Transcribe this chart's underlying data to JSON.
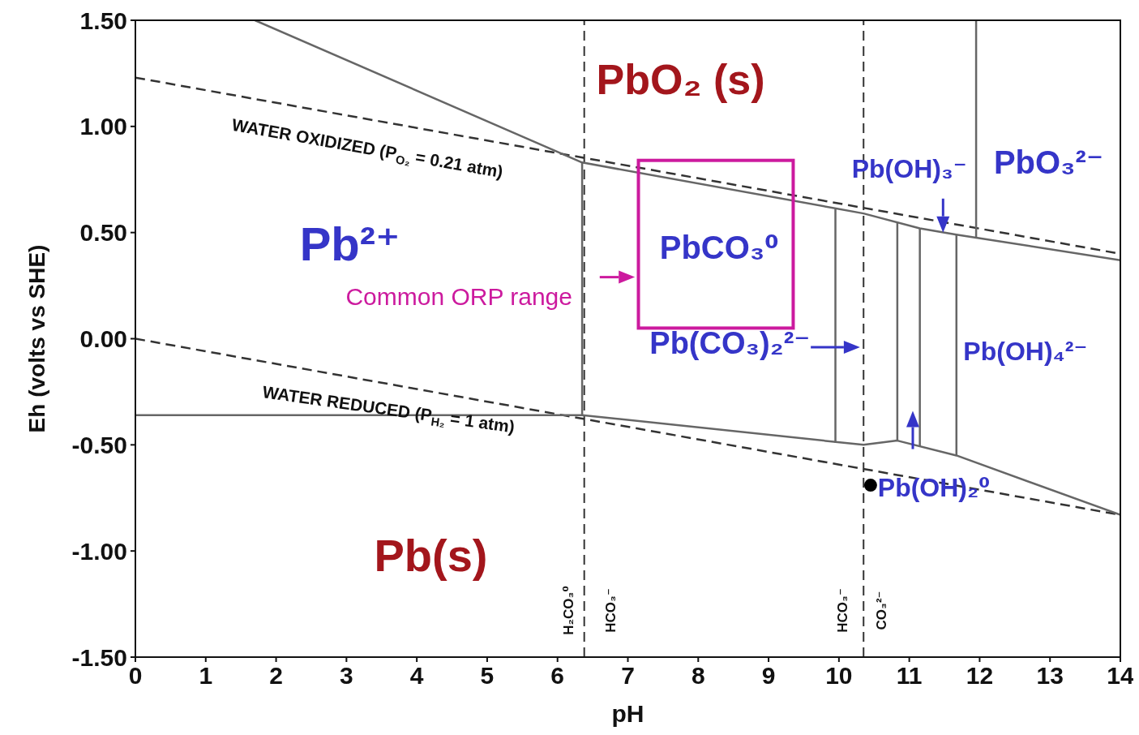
{
  "chart_data": {
    "type": "line",
    "xlabel": "pH",
    "ylabel": "Eh (volts vs SHE)",
    "xlim": [
      0,
      14
    ],
    "xticks": [
      0,
      1,
      2,
      3,
      4,
      5,
      6,
      7,
      8,
      9,
      10,
      11,
      12,
      13,
      14
    ],
    "ylim": [
      -1.5,
      1.5
    ],
    "yticks": [
      {
        "value": -1.5,
        "label": "-1.50"
      },
      {
        "value": -1,
        "label": "-1.00"
      },
      {
        "value": -0.5,
        "label": "-0.50"
      },
      {
        "value": 0,
        "label": "0.00"
      },
      {
        "value": 0.5,
        "label": "0.50"
      },
      {
        "value": 1,
        "label": "1.00"
      },
      {
        "value": 1.5,
        "label": "1.50"
      }
    ],
    "series": [
      {
        "color": "#333333",
        "line_style": "dashed",
        "x": [
          0,
          14
        ],
        "values": [
          1.23,
          0.4
        ]
      },
      {
        "color": "#333333",
        "line_style": "dashed",
        "x": [
          0,
          14
        ],
        "values": [
          0,
          -0.83
        ]
      },
      {
        "color": "#666666",
        "x": [
          1.7,
          6.35,
          10.35,
          11.15,
          11.67,
          14
        ],
        "values": [
          1.5,
          0.83,
          0.59,
          0.52,
          0.49,
          0.37
        ]
      },
      {
        "color": "#666666",
        "x": [
          0,
          6.35,
          10.35,
          10.83,
          11.67,
          14
        ],
        "values": [
          -0.36,
          -0.36,
          -0.5,
          -0.48,
          -0.55,
          -0.83
        ]
      },
      {
        "color": "#666666",
        "x": [
          6.35,
          6.35
        ],
        "values": [
          -0.36,
          0.83
        ]
      },
      {
        "color": "#666666",
        "x": [
          9.95,
          9.95
        ],
        "values": [
          -0.49,
          0.61
        ]
      },
      {
        "color": "#666666",
        "x": [
          10.83,
          10.83
        ],
        "values": [
          -0.48,
          0.55
        ]
      },
      {
        "color": "#666666",
        "x": [
          11.15,
          11.15
        ],
        "values": [
          -0.51,
          0.52
        ]
      },
      {
        "color": "#666666",
        "x": [
          11.67,
          11.67
        ],
        "values": [
          -0.55,
          0.49
        ]
      },
      {
        "color": "#666666",
        "x": [
          11.95,
          11.95
        ],
        "values": [
          0.48,
          1.5
        ]
      },
      {
        "type": "scatter",
        "color": "#000000",
        "x": [
          10.45
        ],
        "values": [
          -0.69
        ]
      }
    ],
    "ref_lines": [
      {
        "axis": "x",
        "value": 6.38,
        "color": "#333333",
        "line_style": "dashed"
      },
      {
        "axis": "x",
        "value": 10.35,
        "color": "#333333",
        "line_style": "dashed"
      }
    ],
    "annotations": [
      "PbO₂ (s)",
      "Pb²⁺",
      "PbCO₃⁰",
      "Pb(CO₃)₂²⁻",
      "Pb(OH)₃⁻",
      "PbO₃²⁻",
      "Pb(OH)₄²⁻",
      "Pb(OH)₂⁰",
      "Pb(s)",
      "WATER OXIDIZED (P$_{O₂}$= 0.21 atm)",
      "WATER REDUCED (P$_{H₂}$= 1 atm)",
      "Common ORP range",
      "H₂CO₃⁰",
      "HCO₃⁻",
      "HCO₃⁻",
      "CO₃²⁻"
    ]
  }
}
